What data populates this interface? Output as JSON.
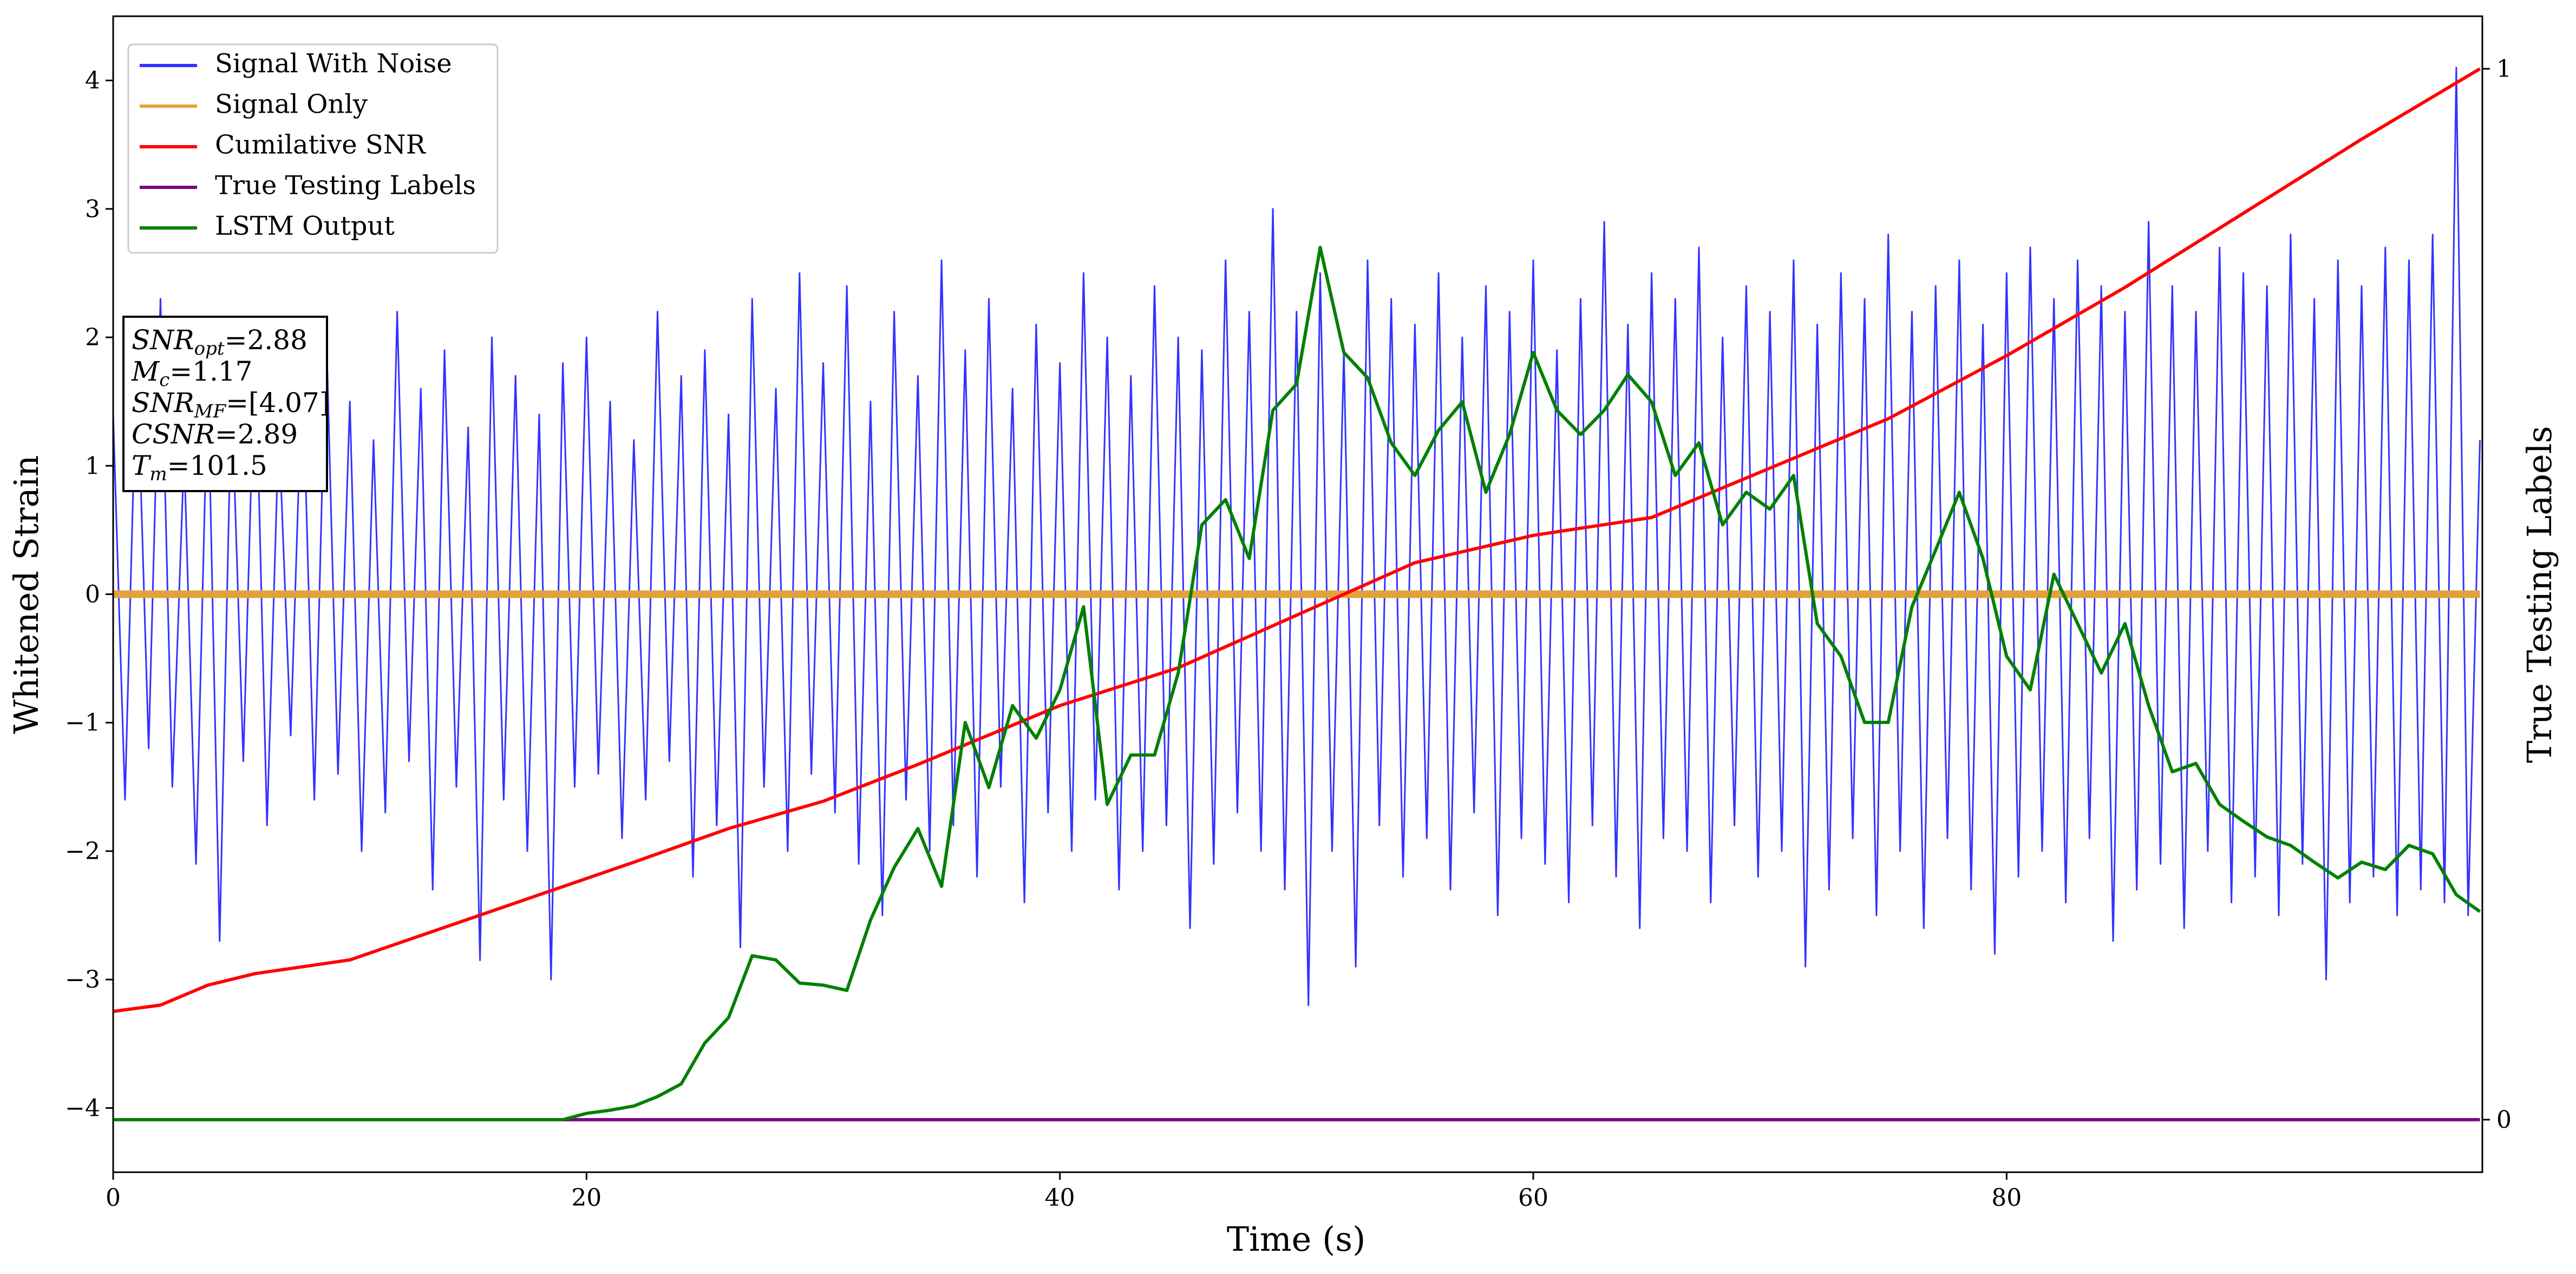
{
  "chart_data": {
    "type": "line",
    "xlabel": "Time (s)",
    "ylabel": "Whitened Strain",
    "y2label": "True Testing Labels",
    "xlim": [
      0,
      100.1
    ],
    "xticks": [
      0,
      20,
      40,
      60,
      80
    ],
    "ylim": [
      -4.5,
      4.5
    ],
    "yticks": [
      -4,
      -3,
      -2,
      -1,
      0,
      1,
      2,
      3,
      4
    ],
    "y2lim": [
      -0.05,
      1.05
    ],
    "y2ticks": [
      0,
      1
    ],
    "grid": false,
    "legend": "upper left",
    "annotation": [
      [
        "SNR",
        "opt",
        "=2.88"
      ],
      [
        "M",
        "c",
        "=1.17"
      ],
      [
        "SNR",
        "MF",
        "=[4.07]"
      ],
      [
        "CSNR",
        "",
        "=2.89"
      ],
      [
        "T",
        "m",
        "=101.5"
      ]
    ],
    "series": [
      {
        "name": "Signal With Noise",
        "color": "#3333ff",
        "width": 3,
        "x": [
          0,
          0.5,
          1,
          1.5,
          2,
          2.5,
          3,
          3.5,
          4,
          4.5,
          5,
          5.5,
          6,
          6.5,
          7,
          7.5,
          8,
          8.5,
          9,
          9.5,
          10,
          10.5,
          11,
          11.5,
          12,
          12.5,
          13,
          13.5,
          14,
          14.5,
          15,
          15.5,
          16,
          16.5,
          17,
          17.5,
          18,
          18.5,
          19,
          19.5,
          20,
          20.5,
          21,
          21.5,
          22,
          22.5,
          23,
          23.5,
          24,
          24.5,
          25,
          25.5,
          26,
          26.5,
          27,
          27.5,
          28,
          28.5,
          29,
          29.5,
          30,
          30.5,
          31,
          31.5,
          32,
          32.5,
          33,
          33.5,
          34,
          34.5,
          35,
          35.5,
          36,
          36.5,
          37,
          37.5,
          38,
          38.5,
          39,
          39.5,
          40,
          40.5,
          41,
          41.5,
          42,
          42.5,
          43,
          43.5,
          44,
          44.5,
          45,
          45.5,
          46,
          46.5,
          47,
          47.5,
          48,
          48.5,
          49,
          49.5,
          50,
          50.5,
          51,
          51.5,
          52,
          52.5,
          53,
          53.5,
          54,
          54.5,
          55,
          55.5,
          56,
          56.5,
          57,
          57.5,
          58,
          58.5,
          59,
          59.5,
          60,
          60.5,
          61,
          61.5,
          62,
          62.5,
          63,
          63.5,
          64,
          64.5,
          65,
          65.5,
          66,
          66.5,
          67,
          67.5,
          68,
          68.5,
          69,
          69.5,
          70,
          70.5,
          71,
          71.5,
          72,
          72.5,
          73,
          73.5,
          74,
          74.5,
          75,
          75.5,
          76,
          76.5,
          77,
          77.5,
          78,
          78.5,
          79,
          79.5,
          80,
          80.5,
          81,
          81.5,
          82,
          82.5,
          83,
          83.5,
          84,
          84.5,
          85,
          85.5,
          86,
          86.5,
          87,
          87.5,
          88,
          88.5,
          89,
          89.5,
          90,
          90.5,
          91,
          91.5,
          92,
          92.5,
          93,
          93.5,
          94,
          94.5,
          95,
          95.5,
          96,
          96.5,
          97,
          97.5,
          98,
          98.5,
          99,
          99.5,
          100
        ],
        "values": [
          1.4,
          -1.6,
          1.9,
          -1.2,
          2.3,
          -1.5,
          1.1,
          -2.1,
          1.7,
          -2.7,
          1.6,
          -1.3,
          2.0,
          -1.8,
          1.3,
          -1.1,
          1.8,
          -1.6,
          2.1,
          -1.4,
          1.5,
          -2.0,
          1.2,
          -1.7,
          2.2,
          -1.3,
          1.6,
          -2.3,
          1.9,
          -1.5,
          1.3,
          -2.85,
          2.0,
          -1.6,
          1.7,
          -2.0,
          1.4,
          -3.0,
          1.8,
          -1.5,
          2.0,
          -1.4,
          1.5,
          -1.9,
          1.2,
          -1.6,
          2.2,
          -1.3,
          1.7,
          -2.2,
          1.9,
          -1.8,
          1.4,
          -2.75,
          2.3,
          -1.5,
          1.6,
          -2.0,
          2.5,
          -1.4,
          1.8,
          -1.7,
          2.4,
          -2.1,
          1.5,
          -2.5,
          2.2,
          -1.6,
          1.7,
          -2.0,
          2.6,
          -1.8,
          1.9,
          -2.2,
          2.3,
          -1.5,
          1.6,
          -2.4,
          2.1,
          -1.7,
          1.8,
          -2.0,
          2.5,
          -1.6,
          2.0,
          -2.3,
          1.7,
          -2.0,
          2.4,
          -1.8,
          2.0,
          -2.6,
          1.9,
          -2.1,
          2.6,
          -1.7,
          2.2,
          -2.0,
          3.0,
          -2.3,
          2.2,
          -3.2,
          2.5,
          -2.0,
          1.9,
          -2.9,
          2.6,
          -1.8,
          2.3,
          -2.2,
          2.1,
          -1.9,
          2.5,
          -2.3,
          2.0,
          -1.7,
          2.4,
          -2.5,
          2.2,
          -1.9,
          2.6,
          -2.1,
          1.9,
          -2.4,
          2.3,
          -1.8,
          2.9,
          -2.2,
          2.1,
          -2.6,
          2.5,
          -1.9,
          2.3,
          -2.0,
          2.7,
          -2.4,
          2.0,
          -1.8,
          2.4,
          -2.2,
          2.2,
          -2.0,
          2.6,
          -2.9,
          2.1,
          -2.3,
          2.5,
          -1.9,
          2.3,
          -2.5,
          2.8,
          -2.0,
          2.2,
          -2.6,
          2.4,
          -1.9,
          2.6,
          -2.3,
          2.1,
          -2.8,
          2.5,
          -2.2,
          2.7,
          -2.0,
          2.3,
          -2.4,
          2.6,
          -1.9,
          2.4,
          -2.7,
          2.2,
          -2.3,
          2.9,
          -2.1,
          2.4,
          -2.6,
          2.2,
          -2.0,
          2.7,
          -2.4,
          2.5,
          -2.2,
          2.4,
          -2.5,
          2.8,
          -2.1,
          2.3,
          -3.0,
          2.6,
          -2.4,
          2.4,
          -2.2,
          2.7,
          -2.5,
          2.6,
          -2.3,
          2.8,
          -2.4,
          4.1,
          -2.5,
          1.2
        ]
      },
      {
        "name": "Signal Only",
        "color": "#e3a13c",
        "width": 14,
        "x": [
          0,
          100
        ],
        "values": [
          0,
          0
        ]
      },
      {
        "name": "Cumilative SNR",
        "color": "#ff0000",
        "width": 6,
        "axis": "y2",
        "x": [
          0,
          2,
          4,
          6,
          10,
          14,
          18,
          22,
          26,
          30,
          34,
          40,
          45,
          50,
          52,
          55,
          60,
          65,
          70,
          75,
          80,
          85,
          90,
          95,
          100
        ],
        "values": [
          0.103,
          0.109,
          0.128,
          0.139,
          0.152,
          0.183,
          0.214,
          0.245,
          0.277,
          0.303,
          0.338,
          0.394,
          0.43,
          0.48,
          0.5,
          0.53,
          0.556,
          0.573,
          0.62,
          0.667,
          0.727,
          0.792,
          0.8625,
          0.933,
          1.0
        ]
      },
      {
        "name": "True Testing Labels",
        "color": "#800080",
        "width": 6,
        "axis": "y2",
        "x": [
          0,
          100
        ],
        "values": [
          0,
          0
        ]
      },
      {
        "name": "LSTM Output",
        "color": "#008000",
        "width": 6,
        "axis": "y2",
        "x": [
          0,
          1,
          2,
          3,
          4,
          5,
          6,
          7,
          8,
          9,
          10,
          11,
          12,
          13,
          14,
          15,
          16,
          17,
          18,
          19,
          20,
          21,
          22,
          23,
          24,
          25,
          26,
          27,
          28,
          29,
          30,
          31,
          32,
          33,
          34,
          35,
          36,
          37,
          38,
          39,
          40,
          41,
          42,
          43,
          44,
          45,
          46,
          47,
          48,
          49,
          50,
          51,
          52,
          53,
          54,
          55,
          56,
          57,
          58,
          59,
          60,
          61,
          62,
          63,
          64,
          65,
          66,
          67,
          68,
          69,
          70,
          71,
          72,
          73,
          74,
          75,
          76,
          77,
          78,
          79,
          80,
          81,
          82,
          83,
          84,
          85,
          86,
          87,
          88,
          89,
          90,
          91,
          92,
          93,
          94,
          95,
          96,
          97,
          98,
          99,
          100
        ],
        "values": [
          0,
          0,
          0,
          0,
          0,
          0,
          0,
          0,
          0,
          0,
          0,
          0,
          0,
          0,
          0,
          0,
          0,
          0,
          0,
          0,
          0.006,
          0.009,
          0.013,
          0.022,
          0.034,
          0.073,
          0.097,
          0.156,
          0.152,
          0.13,
          0.128,
          0.123,
          0.19,
          0.24,
          0.277,
          0.222,
          0.378,
          0.316,
          0.394,
          0.363,
          0.409,
          0.488,
          0.3,
          0.347,
          0.347,
          0.425,
          0.566,
          0.59,
          0.534,
          0.675,
          0.7,
          0.83,
          0.73,
          0.706,
          0.644,
          0.613,
          0.656,
          0.683,
          0.597,
          0.652,
          0.73,
          0.675,
          0.652,
          0.675,
          0.709,
          0.683,
          0.613,
          0.644,
          0.566,
          0.597,
          0.581,
          0.613,
          0.472,
          0.441,
          0.378,
          0.378,
          0.488,
          0.542,
          0.597,
          0.534,
          0.441,
          0.409,
          0.519,
          0.472,
          0.425,
          0.472,
          0.394,
          0.331,
          0.339,
          0.3,
          0.284,
          0.269,
          0.261,
          0.245,
          0.23,
          0.245,
          0.238,
          0.261,
          0.253,
          0.214,
          0.198
        ]
      }
    ]
  }
}
